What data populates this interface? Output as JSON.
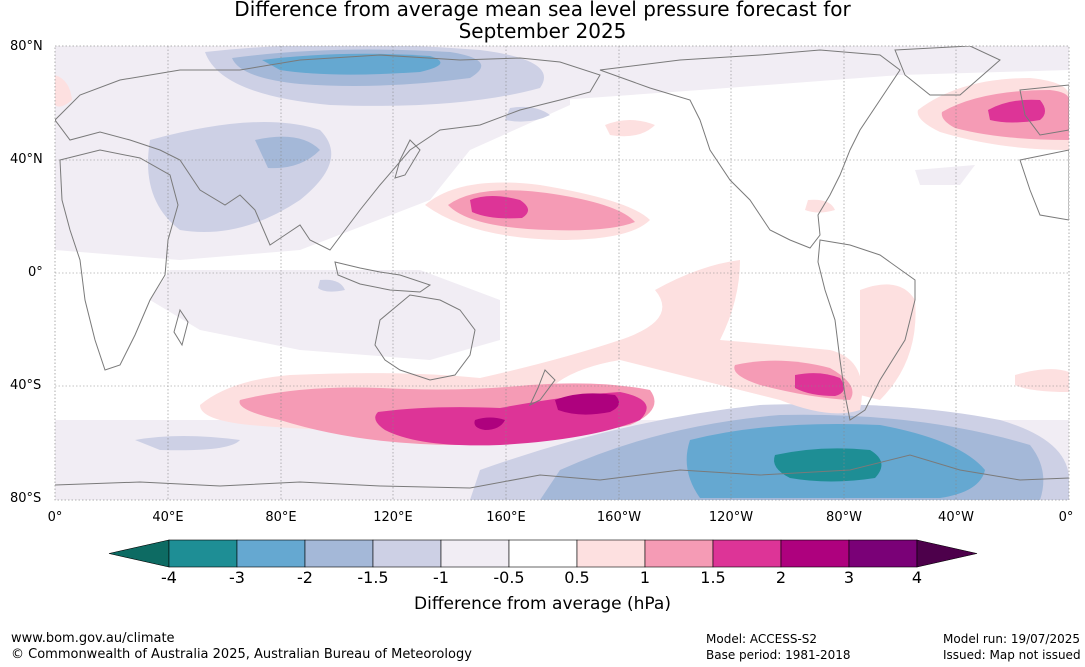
{
  "title_line1": "Difference from average mean sea level pressure forecast for",
  "title_line2": "September 2025",
  "lat_labels": [
    "80°N",
    "40°N",
    "0°",
    "40°S",
    "80°S"
  ],
  "lon_labels": [
    "0°",
    "40°E",
    "80°E",
    "120°E",
    "160°E",
    "160°W",
    "120°W",
    "80°W",
    "40°W",
    "0°"
  ],
  "colorbar": {
    "title": "Difference from average (hPa)",
    "tick_labels": [
      "-4",
      "-3",
      "-2",
      "-1.5",
      "-1",
      "-0.5",
      "0.5",
      "1",
      "1.5",
      "2",
      "3",
      "4"
    ],
    "colors": [
      "#0d6b63",
      "#1e8e95",
      "#65a8d1",
      "#a4b8d8",
      "#cdd0e5",
      "#f1edf4",
      "#ffffff",
      "#fde0e0",
      "#f59bb5",
      "#dd3497",
      "#ae017e",
      "#7a0177",
      "#4d004b"
    ]
  },
  "footer": {
    "website": "www.bom.gov.au/climate",
    "copyright": "© Commonwealth of Australia 2025, Australian Bureau of Meteorology",
    "model": "Model: ACCESS-S2",
    "base_period": "Base period: 1981-2018",
    "model_run": "Model run: 19/07/2025",
    "issued": "Issued: Map not issued"
  },
  "map": {
    "anomaly_regions": [
      {
        "name": "north-pacific-high",
        "peak": "1.5 to 2"
      },
      {
        "name": "north-atlantic-high",
        "peak": "1.5 to 2"
      },
      {
        "name": "southern-ocean-ridge",
        "peak": "2 to 3"
      },
      {
        "name": "southeast-pacific-high",
        "peak": "1.5 to 2"
      },
      {
        "name": "antarctic-low",
        "peak": "-3 to -4"
      },
      {
        "name": "eurasia-low",
        "peak": "-2 to -3"
      }
    ]
  }
}
